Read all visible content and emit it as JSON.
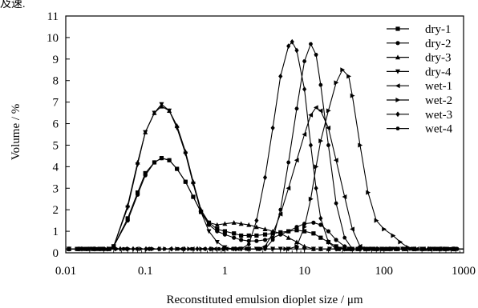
{
  "header_fragment": "及速.",
  "chart_data": {
    "type": "line",
    "xscale": "log",
    "xlim": [
      0.01,
      1000
    ],
    "ylim": [
      0,
      11
    ],
    "xlabel": "Reconstituted emulsion dioplet size / μm",
    "ylabel": "Volume / %",
    "xticks": [
      0.01,
      0.1,
      1,
      10,
      100,
      1000
    ],
    "xtick_labels": [
      "0.01",
      "0.1",
      "1",
      "10",
      "100",
      "1000"
    ],
    "yticks": [
      0,
      1,
      2,
      3,
      4,
      5,
      6,
      7,
      8,
      9,
      10,
      11
    ],
    "ytick_labels": [
      "0",
      "1",
      "2",
      "3",
      "4",
      "5",
      "6",
      "7",
      "8",
      "9",
      "10",
      "11"
    ],
    "legend_position": "top-right",
    "grid": false,
    "series": [
      {
        "name": "dry-1",
        "marker": "square",
        "x": [
          0.04,
          0.06,
          0.08,
          0.1,
          0.13,
          0.16,
          0.2,
          0.25,
          0.32,
          0.4,
          0.5,
          0.63,
          0.8,
          1.0,
          1.3,
          1.6,
          2.0,
          2.5,
          3.2,
          4.0,
          5.0,
          6.3,
          8.0,
          10,
          13,
          16,
          20,
          25,
          32,
          40
        ],
        "y": [
          0.3,
          1.6,
          2.8,
          3.7,
          4.2,
          4.4,
          4.3,
          3.9,
          3.3,
          2.6,
          1.9,
          1.4,
          1.1,
          1.0,
          0.9,
          0.8,
          0.8,
          0.8,
          0.85,
          0.9,
          0.95,
          1.0,
          1.05,
          1.0,
          0.9,
          0.7,
          0.5,
          0.3,
          0.15,
          0.05
        ]
      },
      {
        "name": "dry-2",
        "marker": "circle",
        "x": [
          0.04,
          0.06,
          0.08,
          0.1,
          0.13,
          0.16,
          0.2,
          0.25,
          0.32,
          0.4,
          0.5,
          0.63,
          0.8,
          1.0,
          1.3,
          1.6,
          2.0,
          2.5,
          3.2,
          4.0,
          5.0,
          6.3,
          8.0,
          10,
          13,
          16,
          20,
          25,
          32,
          40,
          50
        ],
        "y": [
          0.3,
          1.5,
          2.7,
          3.6,
          4.2,
          4.4,
          4.3,
          3.9,
          3.3,
          2.6,
          1.9,
          1.3,
          1.0,
          0.85,
          0.7,
          0.6,
          0.55,
          0.55,
          0.6,
          0.7,
          0.85,
          1.0,
          1.2,
          1.35,
          1.4,
          1.3,
          1.0,
          0.6,
          0.3,
          0.1,
          0.02
        ]
      },
      {
        "name": "dry-3",
        "marker": "triangle-up",
        "x": [
          0.04,
          0.06,
          0.08,
          0.1,
          0.13,
          0.16,
          0.2,
          0.25,
          0.32,
          0.4,
          0.5,
          0.63,
          0.8,
          1.0,
          1.3,
          1.6,
          2.0,
          2.5,
          3.2,
          4.0,
          5.0,
          6.3,
          8.0,
          10,
          13,
          16,
          20
        ],
        "y": [
          0.3,
          2.2,
          4.2,
          5.6,
          6.5,
          6.8,
          6.6,
          5.9,
          4.7,
          3.3,
          2.0,
          1.4,
          1.3,
          1.35,
          1.4,
          1.35,
          1.3,
          1.2,
          1.1,
          1.0,
          0.9,
          0.7,
          0.5,
          0.3,
          0.15,
          0.05,
          0.0
        ]
      },
      {
        "name": "dry-4",
        "marker": "triangle-down",
        "x": [
          0.04,
          0.06,
          0.08,
          0.1,
          0.13,
          0.16,
          0.2,
          0.25,
          0.32,
          0.4,
          0.5,
          0.63,
          0.8,
          1.0,
          1.3,
          1.6,
          2.0,
          2.5,
          3.2,
          4.0,
          5.0,
          6.3,
          8.0,
          10,
          13,
          16
        ],
        "y": [
          0.3,
          2.1,
          4.1,
          5.6,
          6.5,
          6.9,
          6.6,
          5.8,
          4.6,
          3.2,
          1.9,
          1.0,
          0.5,
          0.25,
          0.1,
          0.03,
          0.0,
          0.0,
          0.0,
          0.0,
          0.0,
          0.0,
          0.0,
          0.0,
          0.0,
          0.0
        ]
      },
      {
        "name": "wet-1",
        "marker": "triangle-left",
        "x": [
          2.5,
          3.2,
          4.0,
          5.0,
          6.3,
          8.0,
          10,
          12,
          14,
          16,
          20,
          25,
          32,
          40,
          50,
          63
        ],
        "y": [
          0.05,
          0.3,
          0.9,
          1.8,
          3.0,
          4.3,
          5.5,
          6.4,
          6.75,
          6.6,
          5.8,
          4.3,
          2.6,
          1.1,
          0.3,
          0.03
        ]
      },
      {
        "name": "wet-2",
        "marker": "triangle-right",
        "x": [
          6.3,
          8.0,
          10,
          12,
          14,
          16,
          20,
          25,
          30,
          36,
          40,
          50,
          63,
          80,
          100,
          130,
          160,
          200,
          250,
          300
        ],
        "y": [
          0.05,
          0.3,
          1.2,
          2.5,
          4.0,
          5.2,
          6.6,
          7.9,
          8.5,
          8.2,
          7.3,
          5.0,
          2.8,
          1.5,
          1.1,
          0.8,
          0.5,
          0.25,
          0.1,
          0.02
        ]
      },
      {
        "name": "wet-3",
        "marker": "diamond",
        "x": [
          1.6,
          2.0,
          2.5,
          3.2,
          4.0,
          5.0,
          6.3,
          7.0,
          8.0,
          10,
          12,
          14,
          16,
          20,
          25,
          32
        ],
        "y": [
          0.05,
          0.4,
          1.5,
          3.5,
          5.8,
          8.2,
          9.6,
          9.8,
          9.4,
          7.6,
          5.0,
          3.0,
          1.6,
          0.5,
          0.12,
          0.02
        ]
      },
      {
        "name": "wet-4",
        "marker": "hexagon",
        "x": [
          3.2,
          4.0,
          5.0,
          6.3,
          8.0,
          10,
          12,
          14,
          16,
          20,
          25,
          32,
          40,
          50
        ],
        "y": [
          0.05,
          0.6,
          2.0,
          4.2,
          6.7,
          8.9,
          9.7,
          9.2,
          7.8,
          5.0,
          2.3,
          0.7,
          0.12,
          0.02
        ]
      }
    ]
  }
}
